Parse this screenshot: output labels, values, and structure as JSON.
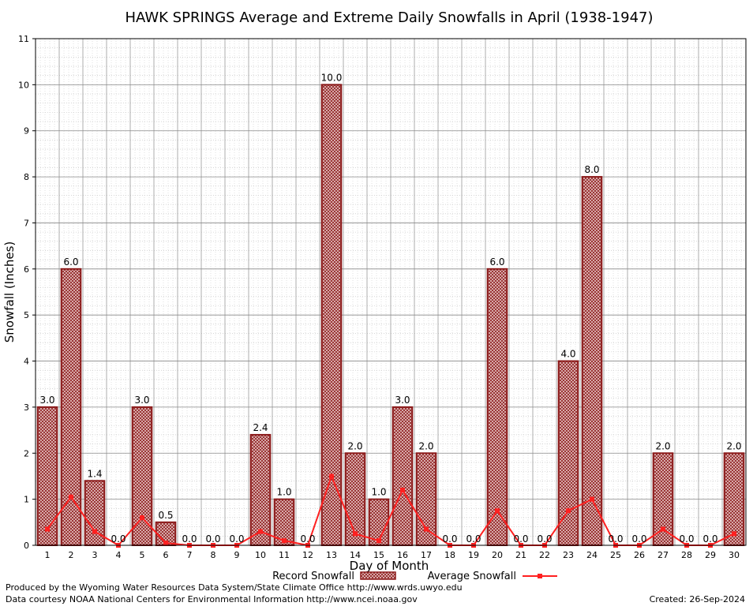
{
  "chart_data": {
    "type": "bar",
    "title": "HAWK SPRINGS Average and Extreme Daily Snowfalls in April (1938-1947)",
    "xlabel": "Day of Month",
    "ylabel": "Snowfall (Inches)",
    "ylim": [
      0,
      11
    ],
    "yticks": [
      0,
      1,
      2,
      3,
      4,
      5,
      6,
      7,
      8,
      9,
      10,
      11
    ],
    "grid": true,
    "categories": [
      "1",
      "2",
      "3",
      "4",
      "5",
      "6",
      "7",
      "8",
      "9",
      "10",
      "11",
      "12",
      "13",
      "14",
      "15",
      "16",
      "17",
      "18",
      "19",
      "20",
      "21",
      "22",
      "23",
      "24",
      "25",
      "26",
      "27",
      "28",
      "29",
      "30"
    ],
    "series": [
      {
        "name": "Record Snowfall",
        "type": "bar",
        "color": "#8b1a1a",
        "values": [
          3.0,
          6.0,
          1.4,
          0.0,
          3.0,
          0.5,
          0.0,
          0.0,
          0.0,
          2.4,
          1.0,
          0.0,
          10.0,
          2.0,
          1.0,
          3.0,
          2.0,
          0.0,
          0.0,
          6.0,
          0.0,
          0.0,
          4.0,
          8.0,
          0.0,
          0.0,
          2.0,
          0.0,
          0.0,
          2.0
        ],
        "labels": [
          "3.0",
          "6.0",
          "1.4",
          "0.0",
          "3.0",
          "0.5",
          "0.0",
          "0.0",
          "0.0",
          "2.4",
          "1.0",
          "0.0",
          "10.0",
          "2.0",
          "1.0",
          "3.0",
          "2.0",
          "0.0",
          "0.0",
          "6.0",
          "0.0",
          "0.0",
          "4.0",
          "8.0",
          "0.0",
          "0.0",
          "2.0",
          "0.0",
          "0.0",
          "2.0"
        ]
      },
      {
        "name": "Average Snowfall",
        "type": "line",
        "color": "#ff2020",
        "values": [
          0.35,
          1.05,
          0.3,
          0.0,
          0.6,
          0.05,
          0.0,
          0.0,
          0.0,
          0.3,
          0.1,
          0.0,
          1.5,
          0.25,
          0.1,
          1.2,
          0.35,
          0.0,
          0.0,
          0.75,
          0.0,
          0.0,
          0.75,
          1.0,
          0.0,
          0.0,
          0.35,
          0.0,
          0.0,
          0.25
        ]
      }
    ],
    "legend_position": "bottom"
  },
  "footer": {
    "credit_line1": "Produced by the Wyoming Water Resources Data System/State Climate Office http://www.wrds.uwyo.edu",
    "credit_line2": "Data courtesy NOAA National Centers for Environmental Information http://www.ncei.noaa.gov",
    "created": "Created:  26-Sep-2024"
  }
}
